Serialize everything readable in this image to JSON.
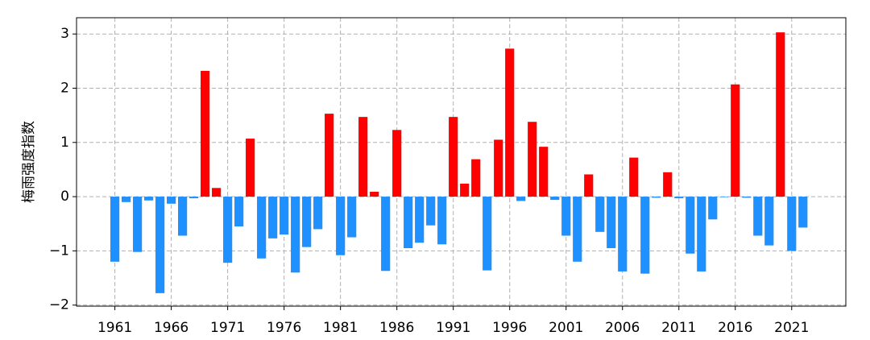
{
  "chart_data": {
    "type": "bar",
    "y_label": "梅雨强度指数",
    "x": [
      1961,
      1962,
      1963,
      1964,
      1965,
      1966,
      1967,
      1968,
      1969,
      1970,
      1971,
      1972,
      1973,
      1974,
      1975,
      1976,
      1977,
      1978,
      1979,
      1980,
      1981,
      1982,
      1983,
      1984,
      1985,
      1986,
      1987,
      1988,
      1989,
      1990,
      1991,
      1992,
      1993,
      1994,
      1995,
      1996,
      1997,
      1998,
      1999,
      2000,
      2001,
      2002,
      2003,
      2004,
      2005,
      2006,
      2007,
      2008,
      2009,
      2010,
      2011,
      2012,
      2013,
      2014,
      2015,
      2016,
      2017,
      2018,
      2019,
      2020,
      2021,
      2022
    ],
    "values": [
      -1.2,
      -0.1,
      -1.02,
      -0.07,
      -1.78,
      -0.13,
      -0.72,
      -0.03,
      2.32,
      0.16,
      -1.22,
      -0.55,
      1.07,
      -1.14,
      -0.77,
      -0.7,
      -1.4,
      -0.93,
      -0.6,
      1.53,
      -1.08,
      -0.75,
      1.47,
      0.09,
      -1.37,
      1.23,
      -0.95,
      -0.85,
      -0.53,
      -0.88,
      1.47,
      0.24,
      0.69,
      -1.36,
      1.05,
      2.73,
      -0.08,
      1.38,
      0.92,
      -0.06,
      -0.72,
      -1.2,
      0.41,
      -0.65,
      -0.95,
      -1.38,
      0.72,
      -1.42,
      -0.02,
      0.45,
      -0.03,
      -1.05,
      -1.38,
      -0.42,
      -0.01,
      2.07,
      -0.02,
      -0.72,
      -0.9,
      3.03,
      -1.0,
      -0.57
    ],
    "positive_color": "#ff0000",
    "negative_color": "#1e90ff",
    "xlim": [
      1957.6,
      2025.8
    ],
    "xticks": [
      1961,
      1966,
      1971,
      1976,
      1981,
      1986,
      1991,
      1996,
      2001,
      2006,
      2011,
      2016,
      2021
    ],
    "ylim": [
      -2.02,
      3.3
    ],
    "yticks": [
      {
        "value": -2,
        "label": "−2"
      },
      {
        "value": -1,
        "label": "−1"
      },
      0,
      1,
      2,
      3
    ],
    "grid": true
  }
}
